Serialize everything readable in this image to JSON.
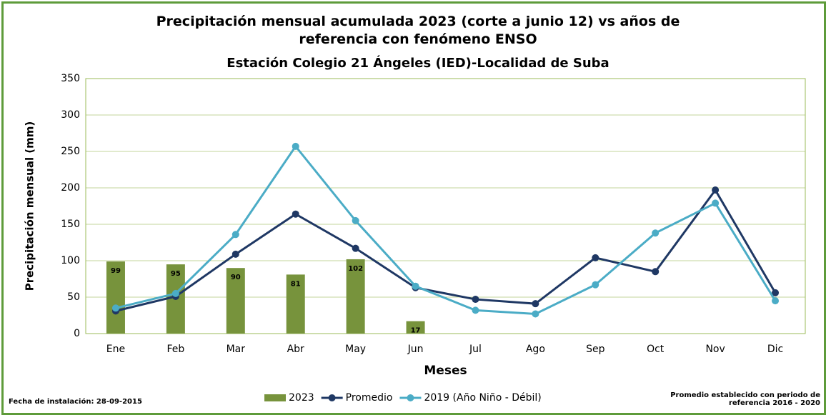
{
  "chart_data": {
    "type": "bar_line",
    "title": "Precipitación mensual acumulada 2023 (corte a junio 12) vs años de referencia con fenómeno ENSO",
    "subtitle": "Estación Colegio 21 Ángeles (IED)-Localidad de Suba",
    "x_label": "Meses",
    "y_label": "Precipitación mensual (mm)",
    "categories": [
      "Ene",
      "Feb",
      "Mar",
      "Abr",
      "May",
      "Jun",
      "Jul",
      "Ago",
      "Sep",
      "Oct",
      "Nov",
      "Dic"
    ],
    "series": [
      {
        "name": "2023",
        "type": "bar",
        "color": "#77933c",
        "values": [
          99,
          95,
          90,
          81,
          102,
          17,
          null,
          null,
          null,
          null,
          null,
          null
        ]
      },
      {
        "name": "Promedio",
        "type": "line",
        "color": "#1f3864",
        "values": [
          31,
          51,
          109,
          164,
          117,
          63,
          47,
          41,
          104,
          85,
          197,
          56
        ]
      },
      {
        "name": "2019 (Año Niño - Débil)",
        "type": "line",
        "color": "#4bacc6",
        "values": [
          35,
          55,
          136,
          257,
          155,
          65,
          32,
          27,
          67,
          138,
          179,
          45
        ]
      }
    ],
    "ylim": [
      0,
      350
    ],
    "yticks": [
      0,
      50,
      100,
      150,
      200,
      250,
      300,
      350
    ],
    "grid": true,
    "legend": "bottom",
    "notes": {
      "left": "Fecha de instalación: 28-09-2015",
      "right": "Promedio establecido con periodo de referencia 2016 - 2020"
    }
  }
}
